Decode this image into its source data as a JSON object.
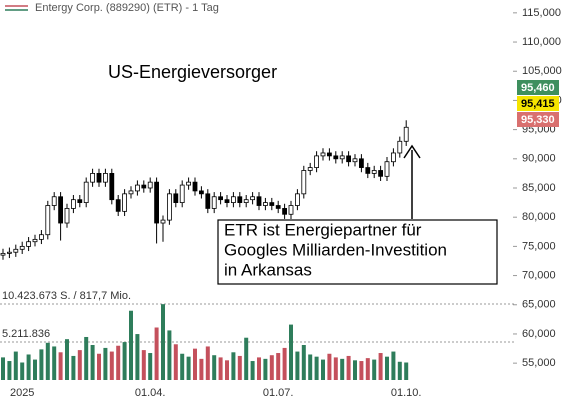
{
  "chart_data": {
    "type": "candlestick",
    "title": "Entergy Corp. (889290) (ETR) - 1 Tag",
    "label": "US-Energieversorger",
    "callout": [
      "ETR ist Energiepartner für",
      "Googles Milliarden-Investition",
      "in Arkansas"
    ],
    "categories": [
      null,
      null,
      null,
      "2025",
      null,
      null,
      null,
      null,
      null,
      null,
      null,
      null,
      null,
      null,
      null,
      null,
      null,
      null,
      null,
      null,
      null,
      null,
      null,
      "01.04.",
      null,
      null,
      null,
      null,
      null,
      null,
      null,
      null,
      null,
      null,
      null,
      null,
      null,
      null,
      null,
      null,
      null,
      null,
      null,
      "01.07.",
      null,
      null,
      null,
      null,
      null,
      null,
      null,
      null,
      null,
      null,
      null,
      null,
      null,
      null,
      null,
      null,
      null,
      null,
      null,
      "01.10."
    ],
    "open": [
      73500,
      73800,
      74000,
      74500,
      75000,
      75800,
      76200,
      77000,
      82000,
      83500,
      79000,
      81500,
      83000,
      82500,
      86000,
      87500,
      86000,
      87500,
      83000,
      81000,
      84000,
      84500,
      85500,
      85000,
      86000,
      79000,
      79500,
      84000,
      82500,
      85500,
      86000,
      84500,
      84000,
      81500,
      83500,
      83000,
      82500,
      83500,
      82500,
      83000,
      83500,
      82000,
      82500,
      82000,
      81500,
      80500,
      82000,
      84000,
      88000,
      88500,
      90500,
      91000,
      90500,
      90000,
      90500,
      89500,
      90000,
      88500,
      87500,
      88000,
      87000,
      89500,
      91000,
      93000
    ],
    "high": [
      74600,
      74800,
      75300,
      75800,
      76600,
      77000,
      77800,
      82800,
      84300,
      84300,
      82300,
      83800,
      83800,
      86800,
      88300,
      88300,
      88300,
      88300,
      83800,
      84800,
      85300,
      86300,
      86300,
      86800,
      86800,
      80300,
      84800,
      84800,
      86300,
      86800,
      86800,
      85300,
      84800,
      84300,
      84300,
      83800,
      84300,
      84300,
      83800,
      84300,
      84300,
      83300,
      83300,
      82800,
      82300,
      82800,
      84800,
      88800,
      89300,
      91300,
      91800,
      91800,
      91300,
      91300,
      91300,
      90800,
      90800,
      89300,
      88800,
      88800,
      90300,
      91800,
      93800,
      96600
    ],
    "low": [
      72700,
      73000,
      73200,
      73700,
      74200,
      75000,
      75400,
      76200,
      81200,
      76000,
      78200,
      80700,
      81700,
      81700,
      85200,
      85200,
      85200,
      82200,
      80200,
      80200,
      83200,
      83700,
      84200,
      84200,
      75500,
      75800,
      78700,
      81700,
      81700,
      84700,
      83700,
      83200,
      80700,
      80700,
      82200,
      81700,
      81700,
      81700,
      81700,
      82200,
      81200,
      81200,
      81200,
      80700,
      79700,
      79700,
      81200,
      83200,
      87200,
      87700,
      89700,
      89700,
      89200,
      89200,
      88700,
      88700,
      87700,
      86700,
      86700,
      86200,
      86200,
      88700,
      90200,
      92200
    ],
    "close": [
      73800,
      74000,
      74500,
      75000,
      75800,
      76200,
      77000,
      82000,
      83500,
      79000,
      81500,
      83000,
      82500,
      86000,
      87500,
      86000,
      87500,
      83000,
      81000,
      84000,
      84500,
      85500,
      85000,
      86000,
      79000,
      79500,
      84000,
      82500,
      85500,
      86000,
      84500,
      84000,
      81500,
      83500,
      83000,
      82500,
      83500,
      82500,
      83000,
      83500,
      82000,
      82500,
      82000,
      81500,
      80500,
      82000,
      84000,
      88000,
      88500,
      90500,
      91000,
      90500,
      90000,
      90500,
      89500,
      90000,
      88500,
      87500,
      88000,
      87000,
      89500,
      91000,
      93000,
      95400
    ],
    "volume": [
      3100000,
      2600000,
      3900000,
      2400000,
      3500000,
      2800000,
      4200000,
      5100000,
      4600000,
      3800000,
      5600000,
      3300000,
      4100000,
      5900000,
      4800000,
      3600000,
      4400000,
      3900000,
      4700000,
      5200000,
      9500000,
      6300000,
      4100000,
      3700000,
      7200000,
      10400000,
      6800000,
      4900000,
      3600000,
      3200000,
      4300000,
      2900000,
      4600000,
      3400000,
      3100000,
      2700000,
      3800000,
      3300000,
      5800000,
      2600000,
      3100000,
      2900000,
      3400000,
      3700000,
      4400000,
      7600000,
      3900000,
      4800000,
      3500000,
      3200000,
      2800000,
      3600000,
      3100000,
      2900000,
      3300000,
      2700000,
      2600000,
      3000000,
      2800000,
      3700000,
      3200000,
      3900000,
      2500000,
      2400000
    ],
    "ylim": [
      51600,
      117200
    ],
    "yticks": [
      {
        "value": 115000,
        "label": "115,000"
      },
      {
        "value": 110000,
        "label": "110,000"
      },
      {
        "value": 105000,
        "label": "105,000"
      },
      {
        "value": 100000,
        "label": "100,000"
      },
      {
        "value": 95000,
        "label": "95,000"
      },
      {
        "value": 90000,
        "label": "90,000"
      },
      {
        "value": 85000,
        "label": "85,000"
      },
      {
        "value": 80000,
        "label": "80,000"
      },
      {
        "value": 75000,
        "label": "75,000"
      },
      {
        "value": 70000,
        "label": "70,000"
      },
      {
        "value": 65000,
        "label": "65,000"
      },
      {
        "value": 60000,
        "label": "60,000"
      },
      {
        "value": 55000,
        "label": "55,000"
      }
    ],
    "volume_ticks": [
      {
        "value": 10423673,
        "label": "10.423.673 S. / 817,7 Mio."
      },
      {
        "value": 5211836,
        "label": "5.211.836"
      }
    ],
    "price_tags": [
      {
        "value": 95460,
        "label": "95,460",
        "color": "#3e8f5e",
        "text_color": "#ffffff"
      },
      {
        "value": 95415,
        "label": "95,415",
        "color": "#f5e400",
        "text_color": "#000000"
      },
      {
        "value": 95330,
        "label": "95,330",
        "color": "#d9706f",
        "text_color": "#ffffff"
      }
    ],
    "up_color": "#ffffff",
    "down_color": "#000000",
    "volume_up_color": "#2e7d5b",
    "volume_down_color": "#c4505c"
  }
}
